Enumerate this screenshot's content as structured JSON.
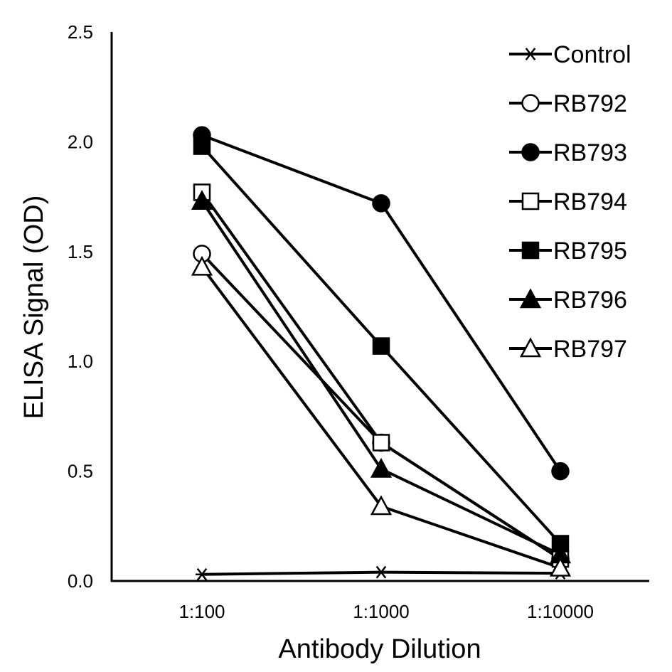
{
  "chart_data": {
    "type": "line",
    "title": "",
    "xlabel": "Antibody Dilution",
    "ylabel": "ELISA Signal (OD)",
    "categories": [
      "1:100",
      "1:1000",
      "1:10000"
    ],
    "ylim": [
      0,
      2.5
    ],
    "yticks": [
      "0.0",
      "0.5",
      "1.0",
      "1.5",
      "2.0",
      "2.5"
    ],
    "grid": false,
    "legend_position": "top-right",
    "line_color": "#000000",
    "series": [
      {
        "name": "Control",
        "marker": "star",
        "values": [
          0.03,
          0.04,
          0.035
        ]
      },
      {
        "name": "RB792",
        "marker": "circle-open",
        "values": [
          1.49,
          0.63,
          0.1
        ]
      },
      {
        "name": "RB793",
        "marker": "circle-filled",
        "values": [
          2.03,
          1.72,
          0.5
        ]
      },
      {
        "name": "RB794",
        "marker": "square-open",
        "values": [
          1.77,
          0.63,
          0.1
        ]
      },
      {
        "name": "RB795",
        "marker": "square-filled",
        "values": [
          1.98,
          1.07,
          0.17
        ]
      },
      {
        "name": "RB796",
        "marker": "triangle-filled",
        "values": [
          1.73,
          0.51,
          0.12
        ]
      },
      {
        "name": "RB797",
        "marker": "triangle-open",
        "values": [
          1.43,
          0.34,
          0.06
        ]
      }
    ]
  }
}
